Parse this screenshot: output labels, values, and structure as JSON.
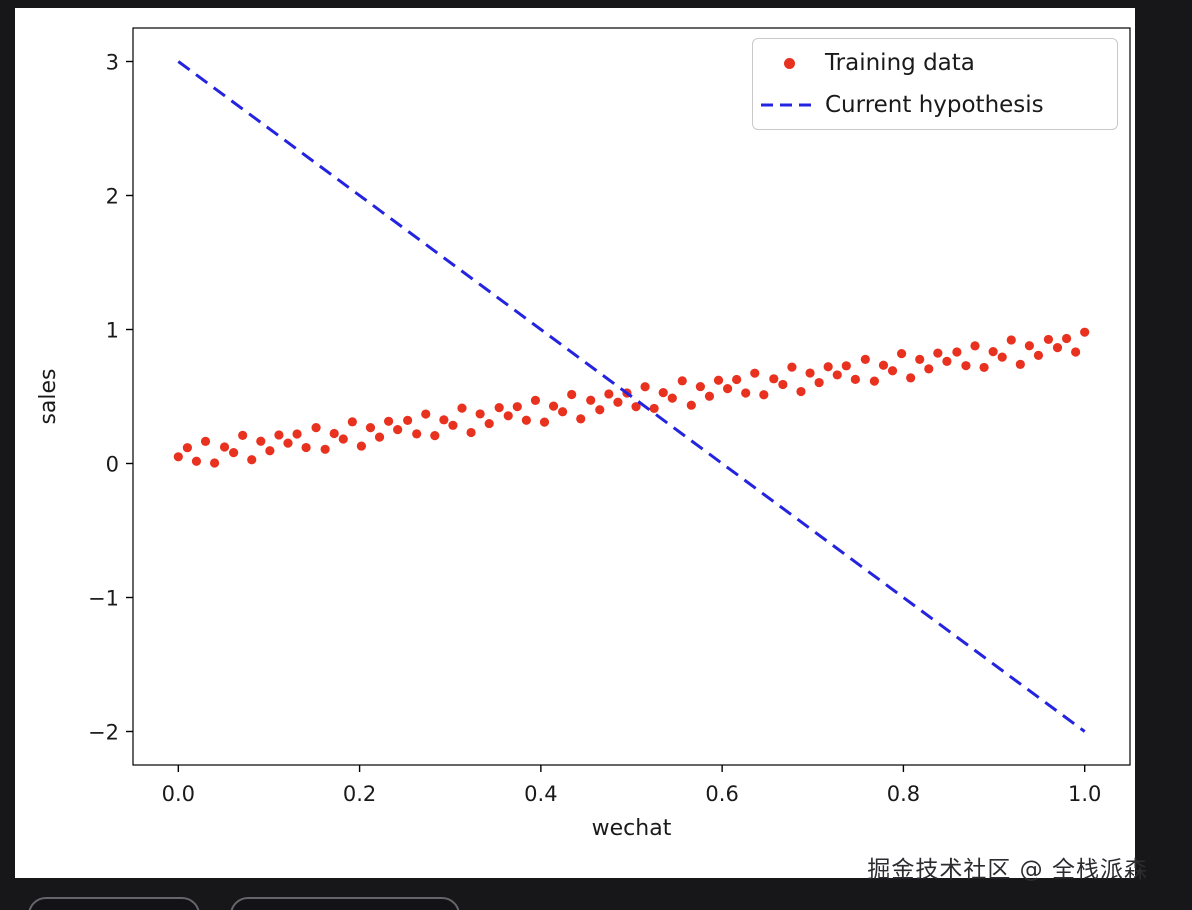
{
  "colors": {
    "page_bg": "#17171a",
    "figure_bg": "#ffffff",
    "scatter_red": "#e8311f",
    "line_blue": "#2424e0",
    "text": "#1a1a1a"
  },
  "watermark": {
    "text": "掘金技术社区 @ 全栈派森"
  },
  "chart_data": {
    "type": "scatter",
    "title": "",
    "xlabel": "wechat",
    "ylabel": "sales",
    "xlim": [
      -0.05,
      1.05
    ],
    "ylim": [
      -2.25,
      3.25
    ],
    "grid": false,
    "x_ticks": [
      0.0,
      0.2,
      0.4,
      0.6,
      0.8,
      1.0
    ],
    "x_tick_labels": [
      "0.0",
      "0.2",
      "0.4",
      "0.6",
      "0.8",
      "1.0"
    ],
    "y_ticks": [
      -2,
      -1,
      0,
      1,
      2,
      3
    ],
    "y_tick_labels": [
      "−2",
      "−1",
      "0",
      "1",
      "2",
      "3"
    ],
    "legend": {
      "position": "upper right",
      "entries": [
        {
          "label": "Training data",
          "marker": "dot",
          "color": "#e8311f"
        },
        {
          "label": "Current hypothesis",
          "marker": "dashed-line",
          "color": "#2424e0"
        }
      ]
    },
    "series": [
      {
        "name": "Training data",
        "type": "scatter",
        "color": "#e8311f",
        "marker_size": 4.6,
        "points": [
          [
            0.0,
            0.05
          ],
          [
            0.01,
            0.118
          ],
          [
            0.02,
            0.017
          ],
          [
            0.03,
            0.165
          ],
          [
            0.04,
            0.004
          ],
          [
            0.051,
            0.123
          ],
          [
            0.061,
            0.081
          ],
          [
            0.071,
            0.21
          ],
          [
            0.081,
            0.028
          ],
          [
            0.091,
            0.166
          ],
          [
            0.101,
            0.095
          ],
          [
            0.111,
            0.213
          ],
          [
            0.121,
            0.152
          ],
          [
            0.131,
            0.22
          ],
          [
            0.141,
            0.119
          ],
          [
            0.152,
            0.268
          ],
          [
            0.162,
            0.106
          ],
          [
            0.172,
            0.224
          ],
          [
            0.182,
            0.183
          ],
          [
            0.192,
            0.311
          ],
          [
            0.202,
            0.13
          ],
          [
            0.212,
            0.268
          ],
          [
            0.222,
            0.197
          ],
          [
            0.232,
            0.315
          ],
          [
            0.242,
            0.253
          ],
          [
            0.253,
            0.322
          ],
          [
            0.263,
            0.221
          ],
          [
            0.273,
            0.369
          ],
          [
            0.283,
            0.208
          ],
          [
            0.293,
            0.326
          ],
          [
            0.303,
            0.285
          ],
          [
            0.313,
            0.413
          ],
          [
            0.323,
            0.231
          ],
          [
            0.333,
            0.37
          ],
          [
            0.343,
            0.298
          ],
          [
            0.354,
            0.417
          ],
          [
            0.364,
            0.356
          ],
          [
            0.374,
            0.424
          ],
          [
            0.384,
            0.323
          ],
          [
            0.394,
            0.471
          ],
          [
            0.404,
            0.309
          ],
          [
            0.414,
            0.428
          ],
          [
            0.424,
            0.386
          ],
          [
            0.434,
            0.515
          ],
          [
            0.444,
            0.333
          ],
          [
            0.455,
            0.472
          ],
          [
            0.465,
            0.401
          ],
          [
            0.475,
            0.519
          ],
          [
            0.485,
            0.457
          ],
          [
            0.495,
            0.526
          ],
          [
            0.505,
            0.424
          ],
          [
            0.515,
            0.573
          ],
          [
            0.525,
            0.411
          ],
          [
            0.535,
            0.529
          ],
          [
            0.545,
            0.488
          ],
          [
            0.556,
            0.617
          ],
          [
            0.566,
            0.435
          ],
          [
            0.576,
            0.574
          ],
          [
            0.586,
            0.502
          ],
          [
            0.596,
            0.621
          ],
          [
            0.606,
            0.559
          ],
          [
            0.616,
            0.627
          ],
          [
            0.626,
            0.526
          ],
          [
            0.636,
            0.674
          ],
          [
            0.646,
            0.513
          ],
          [
            0.657,
            0.632
          ],
          [
            0.667,
            0.59
          ],
          [
            0.677,
            0.719
          ],
          [
            0.687,
            0.537
          ],
          [
            0.697,
            0.675
          ],
          [
            0.707,
            0.604
          ],
          [
            0.717,
            0.722
          ],
          [
            0.727,
            0.661
          ],
          [
            0.737,
            0.729
          ],
          [
            0.747,
            0.628
          ],
          [
            0.758,
            0.777
          ],
          [
            0.768,
            0.615
          ],
          [
            0.778,
            0.733
          ],
          [
            0.788,
            0.692
          ],
          [
            0.798,
            0.82
          ],
          [
            0.808,
            0.639
          ],
          [
            0.818,
            0.777
          ],
          [
            0.828,
            0.706
          ],
          [
            0.838,
            0.824
          ],
          [
            0.848,
            0.762
          ],
          [
            0.859,
            0.832
          ],
          [
            0.869,
            0.73
          ],
          [
            0.879,
            0.878
          ],
          [
            0.889,
            0.717
          ],
          [
            0.899,
            0.835
          ],
          [
            0.909,
            0.794
          ],
          [
            0.919,
            0.922
          ],
          [
            0.929,
            0.74
          ],
          [
            0.939,
            0.879
          ],
          [
            0.949,
            0.807
          ],
          [
            0.96,
            0.926
          ],
          [
            0.97,
            0.865
          ],
          [
            0.98,
            0.933
          ],
          [
            0.99,
            0.832
          ],
          [
            1.0,
            0.98
          ]
        ]
      },
      {
        "name": "Current hypothesis",
        "type": "line",
        "style": "dashed",
        "color": "#2424e0",
        "line_width": 3,
        "points": [
          [
            0.0,
            3.0
          ],
          [
            1.0,
            -2.0
          ]
        ]
      }
    ]
  }
}
